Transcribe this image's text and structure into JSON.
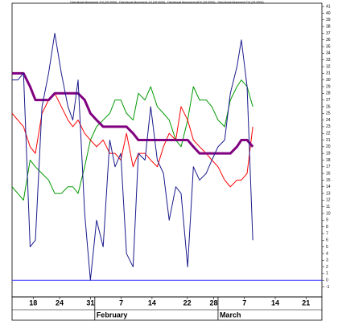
{
  "chart_data": {
    "type": "line",
    "x": [
      13.2,
      14.5,
      15.8,
      17.3,
      18.5,
      20.0,
      21.5,
      22.9,
      24.4,
      25.9,
      27.0,
      28.2,
      29.7,
      31.0,
      32.4,
      33.9,
      35.4,
      36.6,
      37.9,
      39.2,
      40.7,
      41.9,
      43.4,
      44.7,
      46.2,
      47.6,
      48.9,
      50.4,
      51.6,
      53.1,
      54.4,
      55.8,
      57.3,
      58.6,
      60.0,
      61.5,
      62.8,
      64.3,
      65.3,
      66.6,
      67.9
    ],
    "series": [
      {
        "name": "Directional Movement +DI (28.0000)",
        "color": "#009900",
        "width": 1,
        "values": [
          14,
          13,
          12,
          18,
          17,
          16,
          15,
          13,
          13,
          14,
          14,
          13,
          17,
          21,
          23,
          24,
          25,
          27,
          27,
          25,
          24,
          28,
          27,
          29,
          26,
          25,
          24,
          21,
          20,
          24,
          29,
          27,
          27,
          26,
          24,
          23,
          27,
          29,
          30,
          29,
          26
        ]
      },
      {
        "name": "Directional Movement -DI (28.0000)",
        "color": "#ff0000",
        "width": 1,
        "values": [
          25,
          24,
          23,
          20,
          19,
          25,
          27,
          28,
          26,
          24,
          23,
          24,
          22,
          21,
          20,
          21,
          19,
          19,
          18,
          22,
          17,
          19,
          19,
          18,
          17,
          20,
          22,
          21,
          26,
          24,
          21,
          20,
          19,
          18,
          17,
          15,
          14,
          15,
          15,
          16,
          23
        ]
      },
      {
        "name": "Directional Movement ADX (28.0000)",
        "color": "#800080",
        "width": 3,
        "values": [
          31,
          31,
          31,
          29,
          27,
          27,
          27,
          28,
          28,
          28,
          28,
          28,
          27,
          25,
          24,
          23,
          23,
          23,
          23,
          23,
          22,
          21,
          21,
          21,
          21,
          21,
          21,
          21,
          21,
          21,
          20,
          19,
          19,
          19,
          19,
          19,
          19,
          20,
          21,
          21,
          20
        ]
      },
      {
        "name": "Directional Movement DX (28.0000)",
        "color": "#1a1a8c",
        "width": 1,
        "values": [
          30,
          30,
          31,
          5,
          6,
          26,
          31,
          37,
          31,
          26,
          24,
          30,
          10,
          0,
          9,
          5,
          21,
          17,
          19,
          4,
          2,
          19,
          18,
          26,
          18,
          16,
          9,
          14,
          13,
          2,
          17,
          15,
          16,
          18,
          20,
          21,
          28,
          32,
          36,
          29,
          6
        ]
      }
    ],
    "hline": 0,
    "hline_color": "#3333ff",
    "xlim": [
      13.2,
      83.6
    ],
    "xticks": [
      {
        "value": 18,
        "label": "18"
      },
      {
        "value": 24,
        "label": "24"
      },
      {
        "value": 31,
        "label": "31"
      },
      {
        "value": 38,
        "label": "7"
      },
      {
        "value": 45,
        "label": "14"
      },
      {
        "value": 53,
        "label": "22"
      },
      {
        "value": 59,
        "label": "28"
      },
      {
        "value": 66,
        "label": "7"
      },
      {
        "value": 73,
        "label": "14"
      },
      {
        "value": 80,
        "label": "21"
      }
    ],
    "months": [
      {
        "value": 32,
        "label": "February"
      },
      {
        "value": 60,
        "label": "March"
      }
    ],
    "ylim": [
      -2.5,
      41.5
    ],
    "yticks": [
      -1,
      0,
      1,
      2,
      3,
      4,
      5,
      6,
      7,
      8,
      9,
      10,
      11,
      12,
      13,
      14,
      15,
      16,
      17,
      18,
      19,
      20,
      21,
      22,
      23,
      24,
      25,
      26,
      27,
      28,
      29,
      30,
      31,
      32,
      33,
      34,
      35,
      36,
      37,
      38,
      39,
      40,
      41
    ]
  }
}
